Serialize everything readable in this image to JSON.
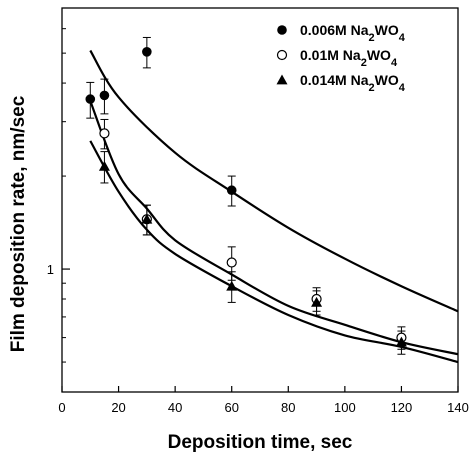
{
  "chart_data": {
    "type": "scatter",
    "xlabel": "Deposition time, sec",
    "ylabel": "Film deposition rate, nm/sec",
    "xlim": [
      0,
      140
    ],
    "ylim": [
      0.4,
      7
    ],
    "y_scale": "log",
    "x_ticks": [
      0,
      20,
      40,
      60,
      80,
      100,
      120,
      140
    ],
    "y_ticks": [
      {
        "value": 1,
        "label": "1"
      }
    ],
    "legend_position": "top-right",
    "series": [
      {
        "name": "0.006M Na2WO4",
        "marker": "filled-circle",
        "points": [
          {
            "x": 10,
            "y": 3.55,
            "err": 0.47
          },
          {
            "x": 15,
            "y": 3.65,
            "err": 0.47
          },
          {
            "x": 30,
            "y": 5.05,
            "err": 0.57
          },
          {
            "x": 60,
            "y": 1.8,
            "err": 0.2
          }
        ],
        "fit": {
          "x": [
            10,
            20,
            40,
            60,
            80,
            100,
            120,
            140
          ],
          "y": [
            5.1,
            3.6,
            2.38,
            1.78,
            1.36,
            1.08,
            0.88,
            0.73
          ]
        }
      },
      {
        "name": "0.01M Na2WO4",
        "marker": "open-circle",
        "points": [
          {
            "x": 15,
            "y": 2.75,
            "err": 0.3
          },
          {
            "x": 30,
            "y": 1.45,
            "err": 0.16
          },
          {
            "x": 60,
            "y": 1.05,
            "err": 0.13
          },
          {
            "x": 90,
            "y": 0.8,
            "err": 0.07
          },
          {
            "x": 120,
            "y": 0.6,
            "err": 0.05
          }
        ],
        "fit": {
          "x": [
            10,
            20,
            30,
            40,
            60,
            80,
            100,
            120,
            140
          ],
          "y": [
            3.5,
            2.03,
            1.57,
            1.24,
            0.96,
            0.76,
            0.66,
            0.58,
            0.53
          ]
        }
      },
      {
        "name": "0.014M Na2WO4",
        "marker": "filled-triangle",
        "points": [
          {
            "x": 15,
            "y": 2.15,
            "err": 0.25
          },
          {
            "x": 30,
            "y": 1.45,
            "err": 0.16
          },
          {
            "x": 60,
            "y": 0.88,
            "err": 0.1
          },
          {
            "x": 90,
            "y": 0.78,
            "err": 0.07
          },
          {
            "x": 120,
            "y": 0.58,
            "err": 0.05
          }
        ],
        "fit": {
          "x": [
            10,
            20,
            30,
            40,
            60,
            80,
            100,
            120,
            140
          ],
          "y": [
            2.6,
            1.78,
            1.34,
            1.12,
            0.88,
            0.71,
            0.61,
            0.56,
            0.5
          ]
        }
      }
    ]
  }
}
